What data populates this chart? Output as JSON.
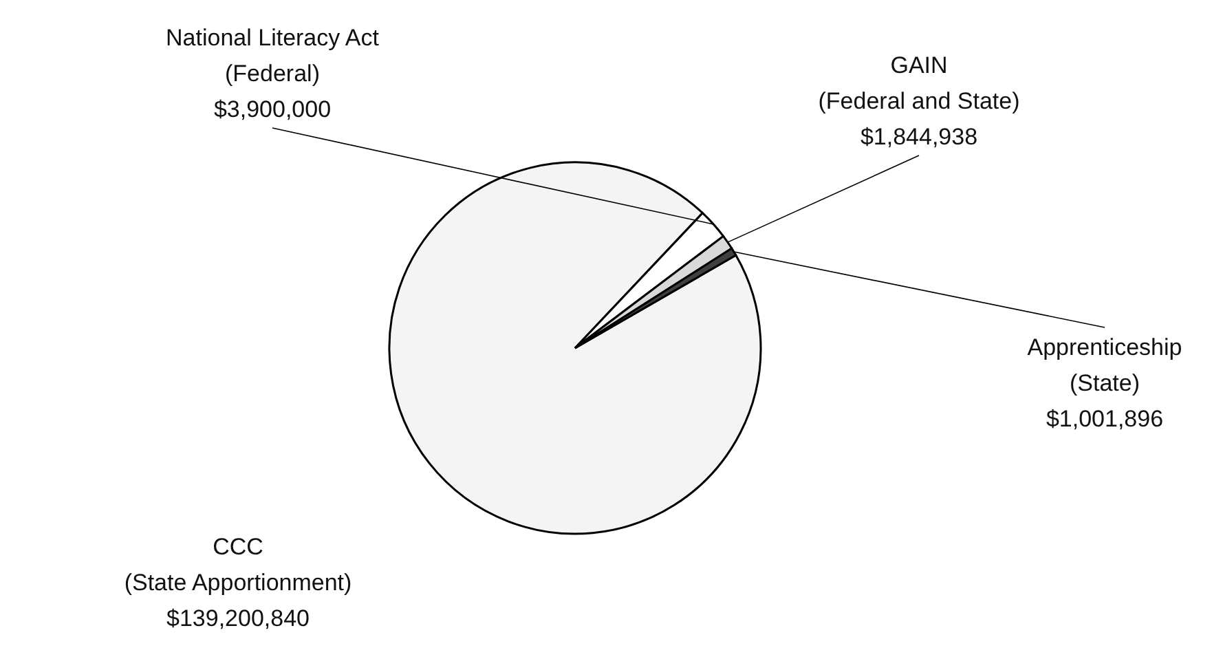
{
  "chart_data": {
    "type": "pie",
    "categories": [
      "CCC\n(State Apportionment)",
      "National Literacy Act\n(Federal)",
      "GAIN\n(Federal and State)",
      "Apprenticeship\n(State)"
    ],
    "values": [
      139200840,
      3900000,
      1844938,
      1001896
    ],
    "value_labels": [
      "$139,200,840",
      "$3,900,000",
      "$1,844,938",
      "$1,001,896"
    ],
    "colors": [
      "#f4f4f4",
      "#ffffff",
      "#d9d9d9",
      "#404040"
    ]
  }
}
